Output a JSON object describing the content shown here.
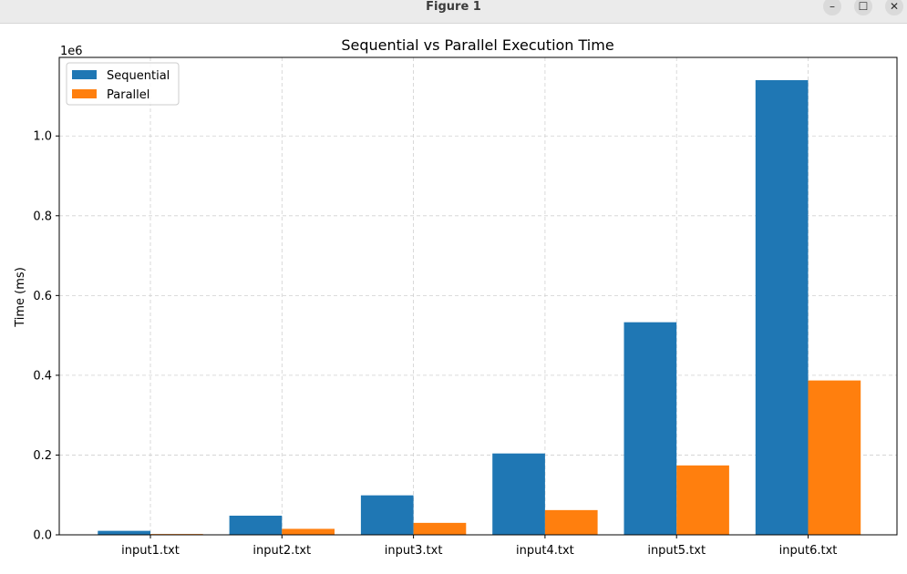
{
  "window": {
    "title": "Figure 1",
    "controls": {
      "minimize": "–",
      "maximize": "☐",
      "close": "✕"
    }
  },
  "chart_data": {
    "type": "bar",
    "title": "Sequential vs Parallel Execution Time",
    "xlabel": "",
    "ylabel": "Time (ms)",
    "offset_label": "1e6",
    "categories": [
      "input1.txt",
      "input2.txt",
      "input3.txt",
      "input4.txt",
      "input5.txt",
      "input6.txt"
    ],
    "series": [
      {
        "name": "Sequential",
        "color": "#1f77b4",
        "values": [
          10000,
          48000,
          99000,
          204000,
          533000,
          1140000
        ]
      },
      {
        "name": "Parallel",
        "color": "#ff7f0e",
        "values": [
          2000,
          15000,
          30000,
          62000,
          174000,
          387000
        ]
      }
    ],
    "ylim": [
      0,
      1197000
    ],
    "yticks": [
      0,
      200000,
      400000,
      600000,
      800000,
      1000000
    ],
    "ytick_labels": [
      "0.0",
      "0.2",
      "0.4",
      "0.6",
      "0.8",
      "1.0"
    ],
    "grid": true,
    "legend_position": "top-left"
  }
}
